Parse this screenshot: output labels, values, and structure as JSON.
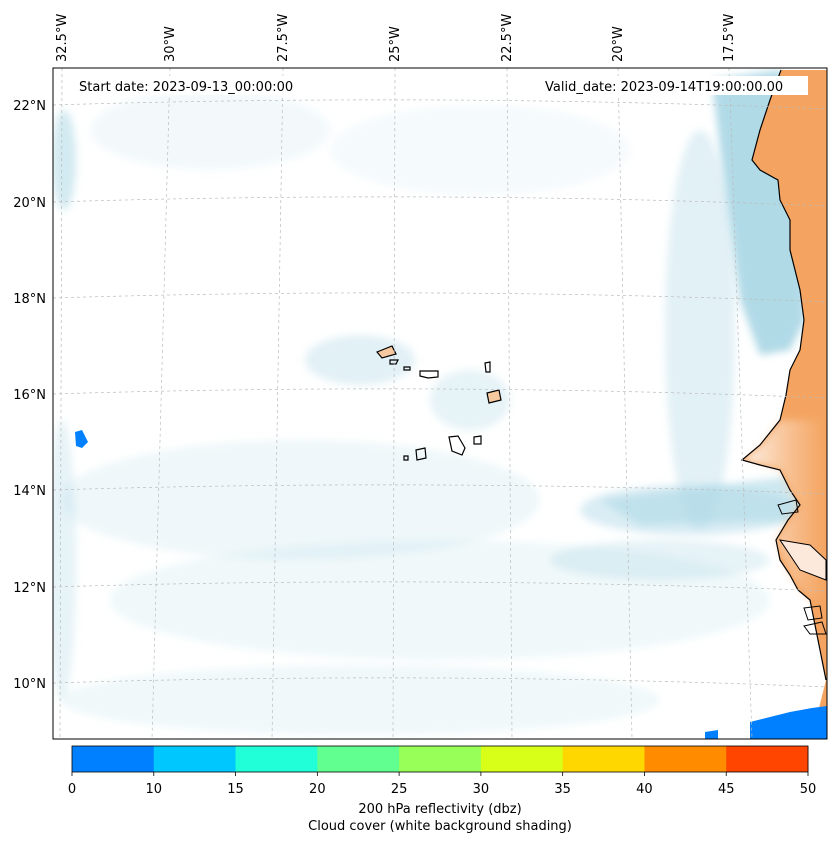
{
  "map": {
    "start_label": "Start date: 2023-09-13_00:00:00",
    "valid_label": "Valid_date: 2023-09-14T19:00:00.00",
    "lon_ticks": [
      "32.5°W",
      "30°W",
      "27.5°W",
      "25°W",
      "22.5°W",
      "20°W",
      "17.5°W"
    ],
    "lat_ticks": [
      "22°N",
      "20°N",
      "18°N",
      "16°N",
      "14°N",
      "12°N",
      "10°N"
    ],
    "gridlines": true,
    "colors": {
      "land": "#f4a460",
      "cloud": "#add8e6",
      "coast": "#000000",
      "grid": "#bbbbbb"
    }
  },
  "colorbar": {
    "ticks": [
      "0",
      "10",
      "15",
      "20",
      "25",
      "30",
      "35",
      "40",
      "45",
      "50"
    ],
    "colors": [
      "#0080ff",
      "#00c8ff",
      "#20ffd8",
      "#60ff90",
      "#98ff58",
      "#d8ff18",
      "#ffd700",
      "#ff8c00",
      "#ff4500"
    ],
    "label_line1": "200 hPa reflectivity (dbz)",
    "label_line2": "Cloud cover (white background shading)"
  }
}
